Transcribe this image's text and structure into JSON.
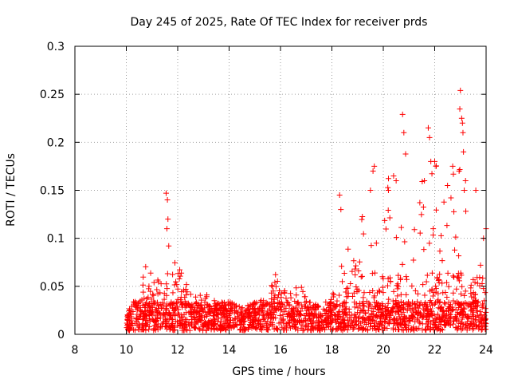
{
  "chart_data": {
    "type": "scatter",
    "title": "Day 245 of 2025, Rate Of TEC Index for receiver prds",
    "xlabel": "GPS time / hours",
    "ylabel": "ROTI / TECUs",
    "xlim": [
      8,
      24
    ],
    "ylim": [
      0,
      0.3
    ],
    "xticks": [
      "8",
      "10",
      "12",
      "14",
      "16",
      "18",
      "20",
      "22",
      "24"
    ],
    "yticks": [
      "0",
      "0.05",
      "0.1",
      "0.15",
      "0.2",
      "0.25",
      "0.3"
    ],
    "grid": true,
    "marker": "plus",
    "marker_color": "#ff0000",
    "envelope": [
      [
        10.0,
        0.012
      ],
      [
        10.2,
        0.03
      ],
      [
        10.5,
        0.035
      ],
      [
        10.75,
        0.078
      ],
      [
        11.0,
        0.06
      ],
      [
        11.25,
        0.065
      ],
      [
        11.5,
        0.085
      ],
      [
        11.55,
        0.147
      ],
      [
        11.75,
        0.07
      ],
      [
        12.0,
        0.08
      ],
      [
        12.25,
        0.055
      ],
      [
        12.5,
        0.04
      ],
      [
        13.0,
        0.04
      ],
      [
        13.5,
        0.03
      ],
      [
        14.0,
        0.03
      ],
      [
        14.5,
        0.025
      ],
      [
        15.0,
        0.03
      ],
      [
        15.5,
        0.035
      ],
      [
        15.8,
        0.06
      ],
      [
        16.0,
        0.045
      ],
      [
        16.5,
        0.04
      ],
      [
        16.75,
        0.05
      ],
      [
        17.0,
        0.035
      ],
      [
        17.5,
        0.025
      ],
      [
        18.0,
        0.035
      ],
      [
        18.3,
        0.075
      ],
      [
        18.5,
        0.12
      ],
      [
        18.75,
        0.09
      ],
      [
        19.0,
        0.105
      ],
      [
        19.25,
        0.13
      ],
      [
        19.6,
        0.17
      ],
      [
        19.8,
        0.12
      ],
      [
        20.0,
        0.15
      ],
      [
        20.3,
        0.18
      ],
      [
        20.5,
        0.16
      ],
      [
        20.75,
        0.23
      ],
      [
        21.0,
        0.15
      ],
      [
        21.25,
        0.16
      ],
      [
        21.5,
        0.165
      ],
      [
        21.75,
        0.21
      ],
      [
        22.0,
        0.2
      ],
      [
        22.3,
        0.155
      ],
      [
        22.5,
        0.13
      ],
      [
        22.75,
        0.17
      ],
      [
        23.0,
        0.255
      ],
      [
        23.25,
        0.16
      ],
      [
        23.5,
        0.11
      ],
      [
        23.75,
        0.09
      ],
      [
        24.0,
        0.11
      ]
    ],
    "spikes": [
      [
        11.55,
        0.147
      ],
      [
        11.6,
        0.14
      ],
      [
        11.62,
        0.12
      ],
      [
        11.58,
        0.11
      ],
      [
        18.3,
        0.145
      ],
      [
        19.6,
        0.17
      ],
      [
        19.65,
        0.175
      ],
      [
        20.75,
        0.229
      ],
      [
        20.8,
        0.21
      ],
      [
        21.75,
        0.215
      ],
      [
        21.8,
        0.205
      ],
      [
        21.85,
        0.18
      ],
      [
        22.0,
        0.18
      ],
      [
        22.05,
        0.175
      ],
      [
        23.0,
        0.254
      ],
      [
        23.05,
        0.225
      ],
      [
        23.08,
        0.22
      ],
      [
        23.1,
        0.21
      ],
      [
        23.12,
        0.19
      ],
      [
        22.95,
        0.17
      ],
      [
        23.2,
        0.16
      ],
      [
        22.5,
        0.155
      ],
      [
        21.6,
        0.16
      ],
      [
        20.4,
        0.165
      ],
      [
        20.5,
        0.16
      ],
      [
        20.2,
        0.15
      ],
      [
        19.5,
        0.15
      ],
      [
        18.35,
        0.13
      ],
      [
        22.7,
        0.175
      ],
      [
        23.15,
        0.15
      ],
      [
        23.6,
        0.15
      ],
      [
        24.0,
        0.11
      ],
      [
        23.9,
        0.1
      ]
    ]
  }
}
